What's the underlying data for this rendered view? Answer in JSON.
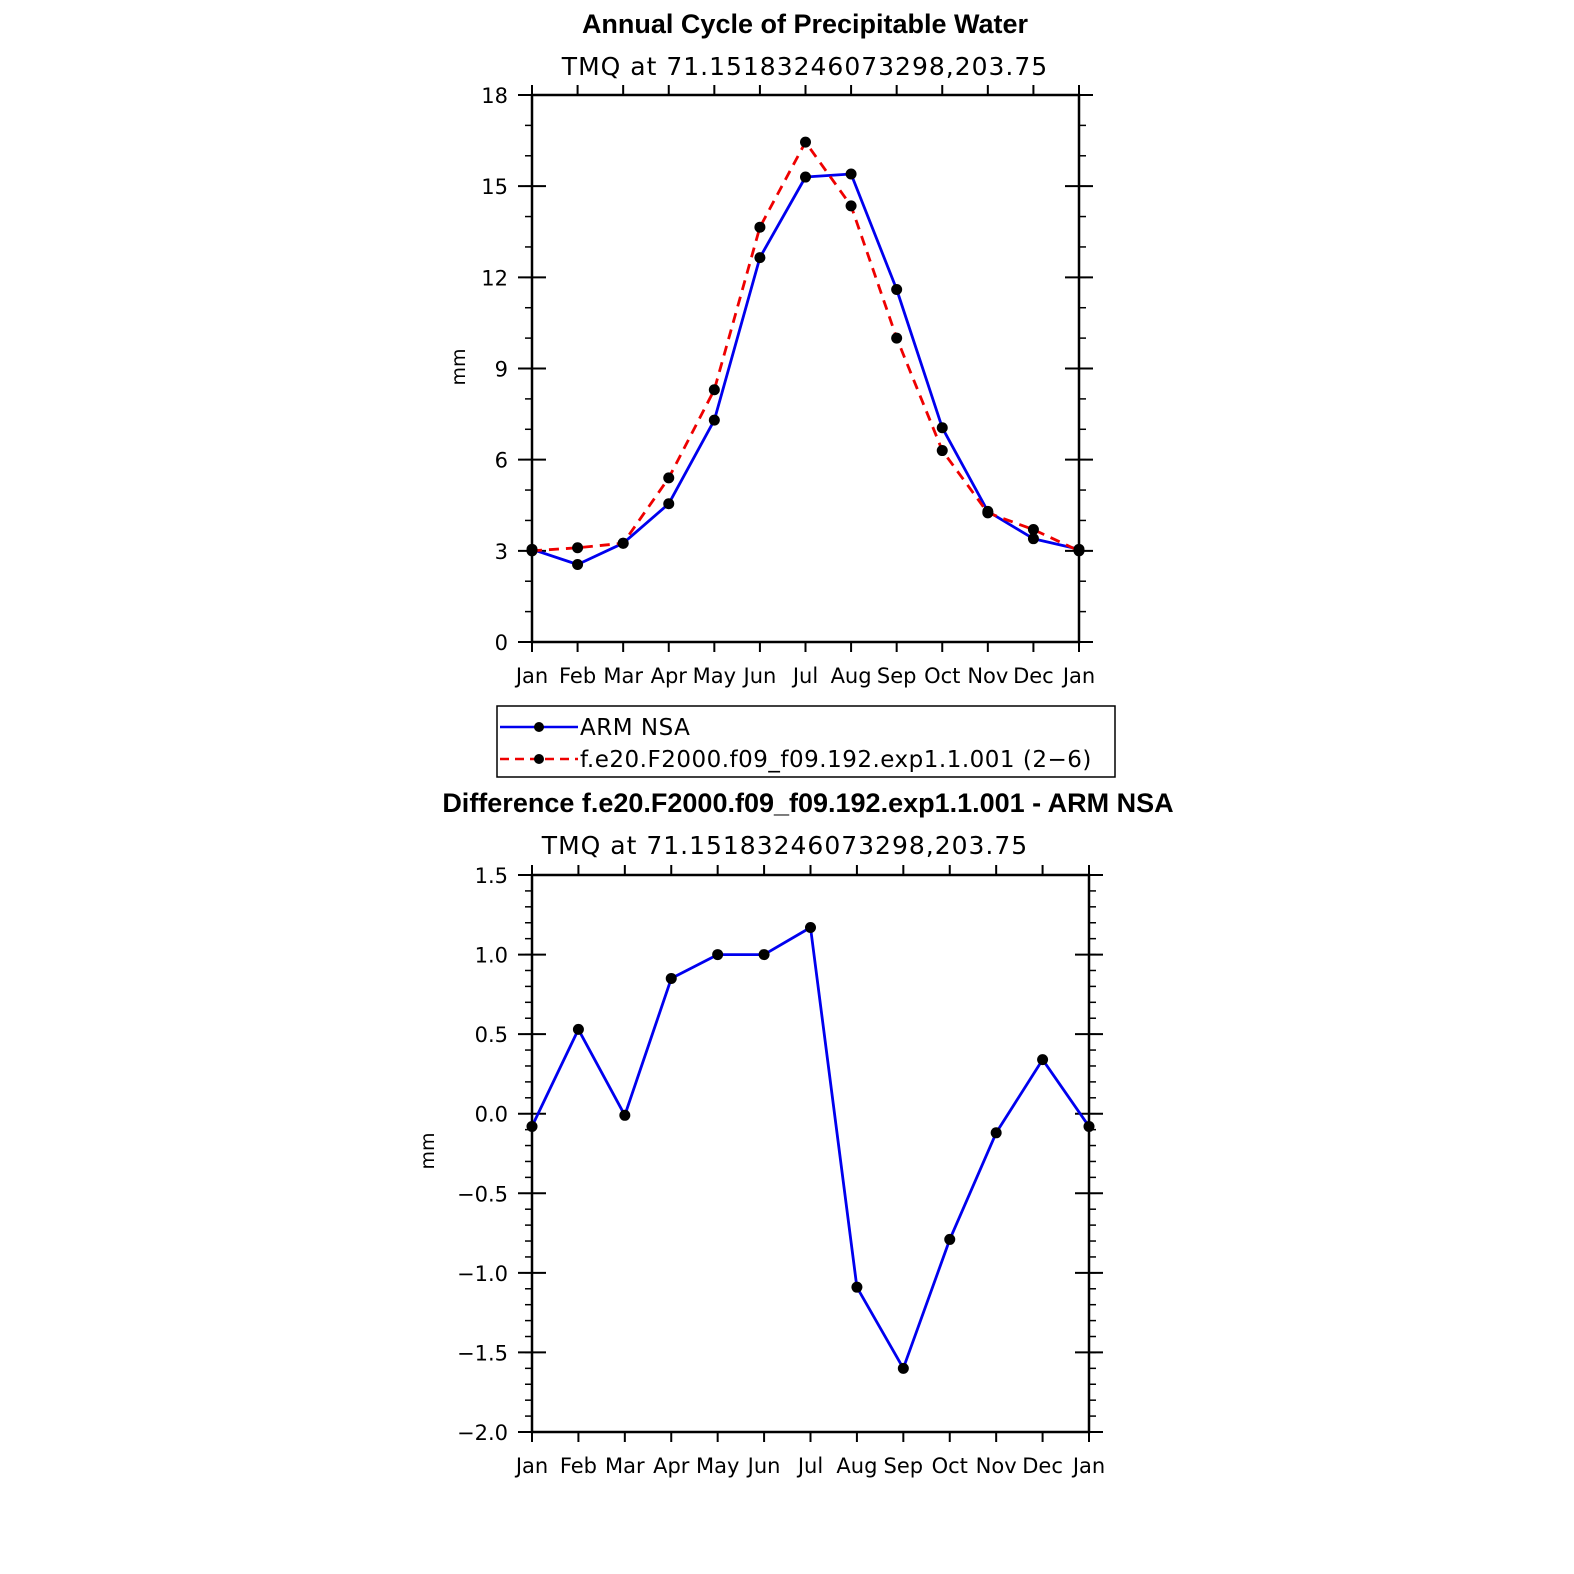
{
  "colors": {
    "obs": "#0000ee",
    "model": "#ee0000",
    "marker": "#000000",
    "axis": "#000000"
  },
  "chart_data": [
    {
      "type": "line",
      "title": "Annual Cycle of Precipitable Water",
      "subtitle": "TMQ at 71.15183246073298,203.75",
      "xlabel": "",
      "ylabel": "mm",
      "categories": [
        "Jan",
        "Feb",
        "Mar",
        "Apr",
        "May",
        "Jun",
        "Jul",
        "Aug",
        "Sep",
        "Oct",
        "Nov",
        "Dec",
        "Jan"
      ],
      "ylim": [
        0,
        18
      ],
      "yticks": [
        0,
        3,
        6,
        9,
        12,
        15,
        18
      ],
      "series": [
        {
          "name": "ARM NSA",
          "style": "solid",
          "color_key": "obs",
          "values": [
            3.05,
            2.55,
            3.25,
            4.55,
            7.3,
            12.65,
            15.3,
            15.4,
            11.6,
            7.05,
            4.3,
            3.4,
            3.05
          ]
        },
        {
          "name": "f.e20.F2000.f09_f09.192.exp1.1.001 (2−6)",
          "style": "dashed",
          "color_key": "model",
          "values": [
            3.0,
            3.1,
            3.25,
            5.4,
            8.3,
            13.65,
            16.45,
            14.35,
            10.0,
            6.3,
            4.25,
            3.7,
            3.0
          ]
        }
      ],
      "legend": {
        "position": "below",
        "entries": [
          "ARM NSA",
          "f.e20.F2000.f09_f09.192.exp1.1.001 (2−6)"
        ]
      }
    },
    {
      "type": "line",
      "title": "Difference f.e20.F2000.f09_f09.192.exp1.1.001 - ARM NSA",
      "subtitle": "TMQ at 71.15183246073298,203.75",
      "xlabel": "",
      "ylabel": "mm",
      "categories": [
        "Jan",
        "Feb",
        "Mar",
        "Apr",
        "May",
        "Jun",
        "Jul",
        "Aug",
        "Sep",
        "Oct",
        "Nov",
        "Dec",
        "Jan"
      ],
      "ylim": [
        -2.0,
        1.5
      ],
      "yticks": [
        "−2.0",
        "−1.5",
        "−1.0",
        "−0.5",
        "0.0",
        "0.5",
        "1.0",
        "1.5"
      ],
      "series": [
        {
          "name": "Difference",
          "style": "solid",
          "color_key": "obs",
          "values": [
            -0.08,
            0.53,
            -0.01,
            0.85,
            1.0,
            1.0,
            1.17,
            -1.09,
            -1.6,
            -0.79,
            -0.12,
            0.34,
            -0.08
          ]
        }
      ]
    }
  ]
}
